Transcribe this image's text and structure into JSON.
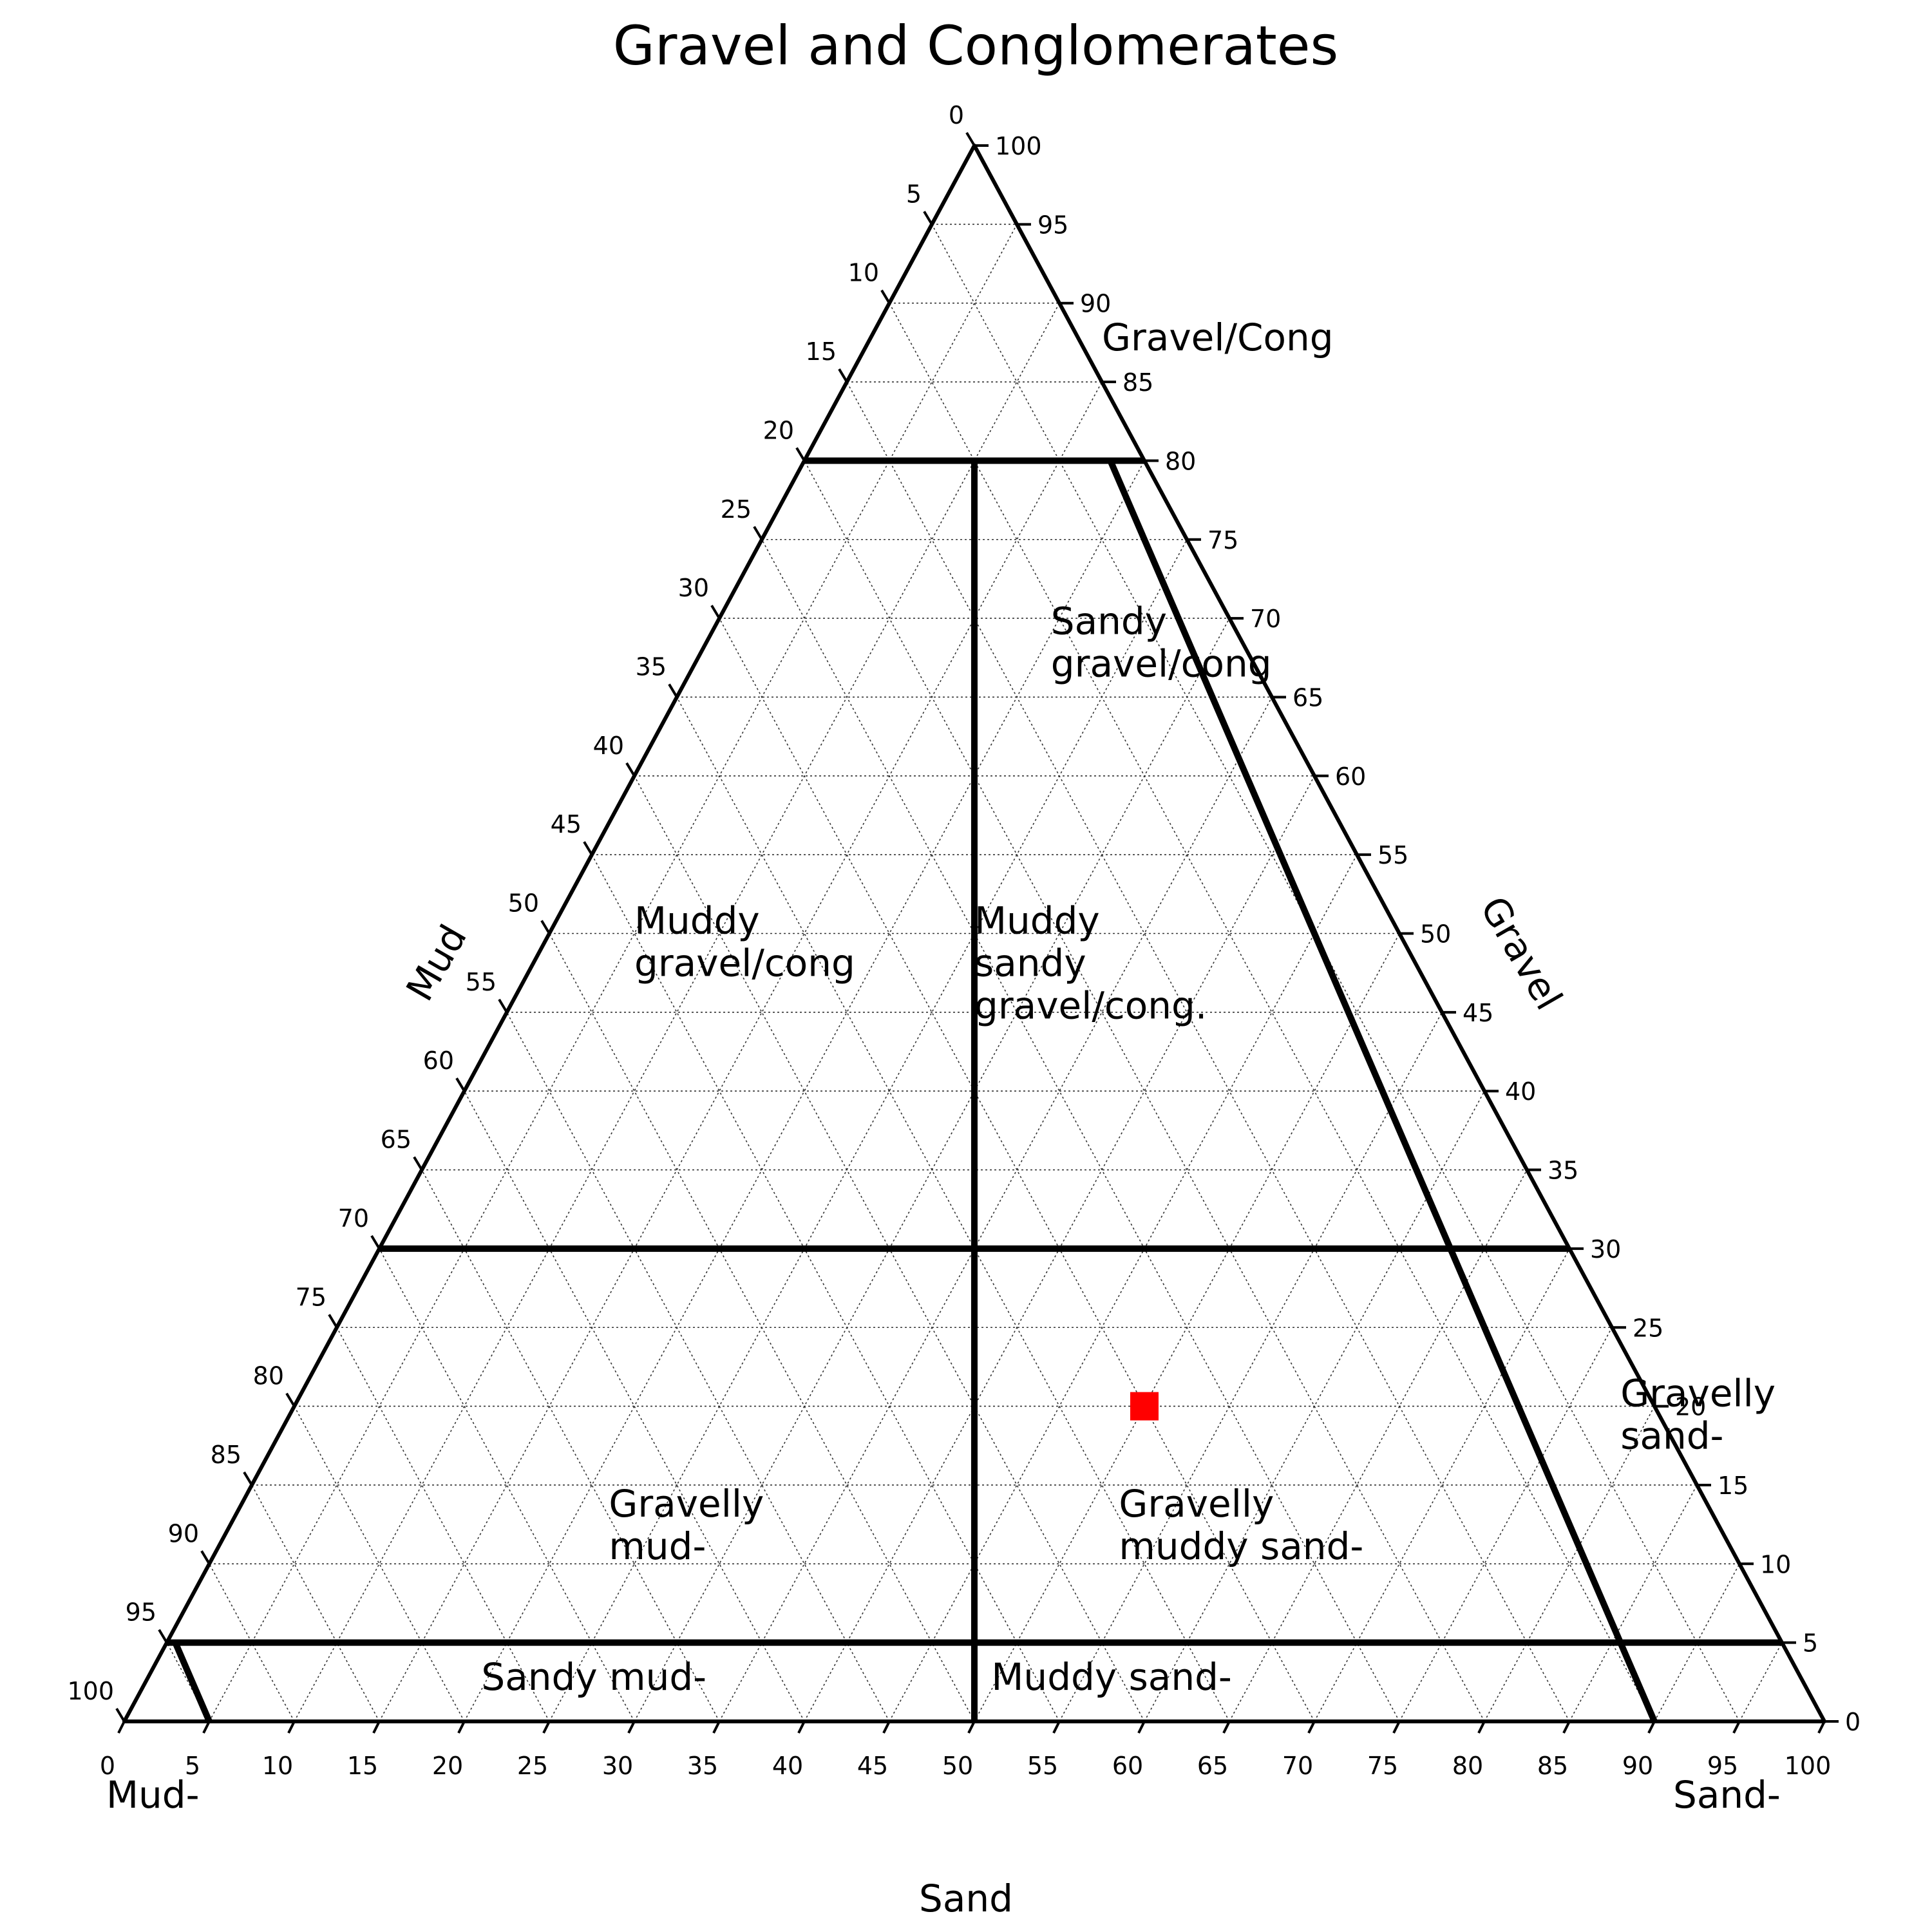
{
  "chart_data": {
    "type": "scatter",
    "subtype": "ternary",
    "title": "Gravel and Conglomerates",
    "axes": {
      "bottom": {
        "name": "Sand",
        "range": [
          0,
          100
        ],
        "step": 5,
        "end_labels": {
          "left": "Mud-",
          "right": "Sand-"
        }
      },
      "right": {
        "name": "Gravel",
        "range": [
          0,
          100
        ],
        "step": 5
      },
      "left": {
        "name": "Mud",
        "range": [
          0,
          100
        ],
        "step": 5
      }
    },
    "grid": true,
    "boundaries": [
      {
        "name": "gravel-80",
        "from": {
          "sand": 0,
          "gravel": 80
        },
        "to": {
          "sand": 20,
          "gravel": 80
        }
      },
      {
        "name": "gravel-30",
        "from": {
          "sand": 0,
          "gravel": 30
        },
        "to": {
          "sand": 70,
          "gravel": 30
        }
      },
      {
        "name": "gravel-5",
        "from": {
          "sand": 0,
          "gravel": 5
        },
        "to": {
          "sand": 95,
          "gravel": 5
        }
      },
      {
        "name": "sand-mud-1-1",
        "from": {
          "sand": 10,
          "gravel": 80
        },
        "to": {
          "sand": 50,
          "gravel": 0
        }
      },
      {
        "name": "sand-mud-9-1",
        "from": {
          "sand": 18,
          "gravel": 80
        },
        "to": {
          "sand": 90,
          "gravel": 0
        }
      },
      {
        "name": "sand-mud-1-9",
        "from": {
          "sand": 0.5,
          "gravel": 5
        },
        "to": {
          "sand": 5,
          "gravel": 0
        }
      }
    ],
    "regions": [
      {
        "label": [
          "Gravel/Cong"
        ],
        "sand": 14,
        "gravel": 87
      },
      {
        "label": [
          "Sandy",
          "gravel/cong"
        ],
        "sand": 20,
        "gravel": 69
      },
      {
        "label": [
          "Muddy",
          "gravel/cong"
        ],
        "sand": 5,
        "gravel": 50
      },
      {
        "label": [
          "Muddy",
          "sandy",
          "gravel/cong."
        ],
        "sand": 25,
        "gravel": 50
      },
      {
        "label": [
          "Gravelly",
          "mud-"
        ],
        "sand": 22,
        "gravel": 13
      },
      {
        "label": [
          "Gravelly",
          "muddy sand-"
        ],
        "sand": 52,
        "gravel": 13
      },
      {
        "label": [
          "Gravelly",
          "sand-"
        ],
        "sand": 78,
        "gravel": 20
      },
      {
        "label": [
          "Sandy mud-"
        ],
        "sand": 20,
        "gravel": 2
      },
      {
        "label": [
          "Muddy sand-"
        ],
        "sand": 50,
        "gravel": 2
      }
    ],
    "points": [
      {
        "sand": 50,
        "gravel": 20,
        "mud": 30,
        "color": "#ff0000",
        "marker": "square"
      }
    ]
  }
}
